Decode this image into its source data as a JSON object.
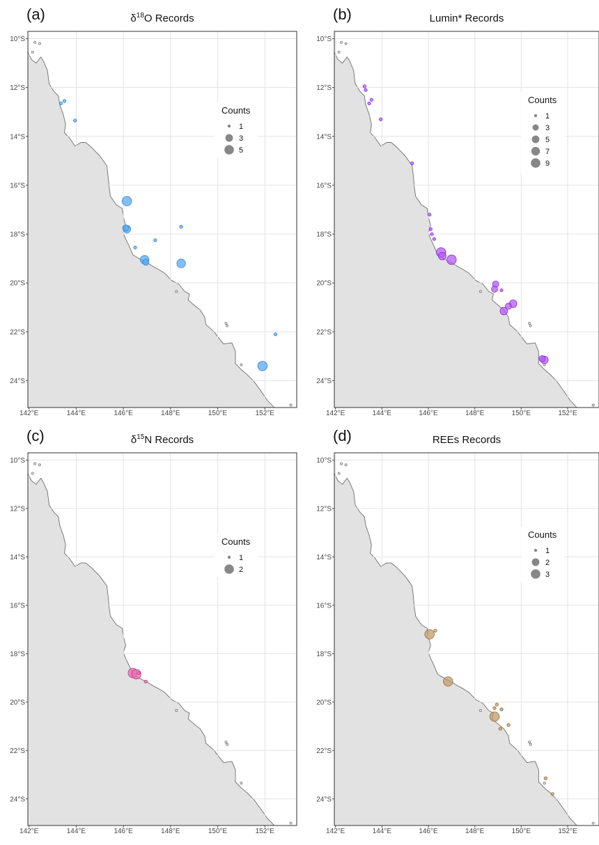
{
  "figure": {
    "panels": [
      {
        "letter": "(a)",
        "title_prefix": "δ",
        "title_sup": "18",
        "title_main": "O Records",
        "point_color": "#5aaaf0",
        "point_stroke": "#2e86d6",
        "legend": {
          "title": "Counts",
          "entries": [
            {
              "label": "1",
              "count": 1
            },
            {
              "label": "3",
              "count": 3
            },
            {
              "label": "5",
              "count": 5
            }
          ]
        },
        "points": [
          {
            "lon": 143.5,
            "lat": -12.55,
            "count": 1
          },
          {
            "lon": 143.35,
            "lat": -12.65,
            "count": 1
          },
          {
            "lon": 143.95,
            "lat": -13.35,
            "count": 1
          },
          {
            "lon": 146.15,
            "lat": -16.65,
            "count": 5
          },
          {
            "lon": 146.15,
            "lat": -17.8,
            "count": 3
          },
          {
            "lon": 146.1,
            "lat": -17.75,
            "count": 2
          },
          {
            "lon": 146.5,
            "lat": -18.55,
            "count": 1
          },
          {
            "lon": 147.35,
            "lat": -18.25,
            "count": 1
          },
          {
            "lon": 148.45,
            "lat": -17.7,
            "count": 1
          },
          {
            "lon": 146.9,
            "lat": -19.05,
            "count": 4
          },
          {
            "lon": 146.95,
            "lat": -19.15,
            "count": 2
          },
          {
            "lon": 148.45,
            "lat": -19.2,
            "count": 4
          },
          {
            "lon": 152.45,
            "lat": -22.1,
            "count": 1
          },
          {
            "lon": 151.9,
            "lat": -23.4,
            "count": 5
          }
        ]
      },
      {
        "letter": "(b)",
        "title_prefix": "",
        "title_sup": "",
        "title_main": "Lumin* Records",
        "point_color": "#b45cf0",
        "point_stroke": "#8a2be2",
        "legend": {
          "title": "Counts",
          "entries": [
            {
              "label": "1",
              "count": 1
            },
            {
              "label": "3",
              "count": 3
            },
            {
              "label": "5",
              "count": 5
            },
            {
              "label": "7",
              "count": 7
            },
            {
              "label": "9",
              "count": 9
            }
          ]
        },
        "points": [
          {
            "lon": 143.25,
            "lat": -11.95,
            "count": 1
          },
          {
            "lon": 143.3,
            "lat": -12.1,
            "count": 1
          },
          {
            "lon": 143.55,
            "lat": -12.5,
            "count": 1
          },
          {
            "lon": 143.45,
            "lat": -12.65,
            "count": 1
          },
          {
            "lon": 143.95,
            "lat": -13.3,
            "count": 1
          },
          {
            "lon": 145.3,
            "lat": -15.1,
            "count": 1
          },
          {
            "lon": 146.05,
            "lat": -17.2,
            "count": 1
          },
          {
            "lon": 146.1,
            "lat": -17.8,
            "count": 1
          },
          {
            "lon": 146.15,
            "lat": -18.0,
            "count": 1
          },
          {
            "lon": 146.25,
            "lat": -18.2,
            "count": 1
          },
          {
            "lon": 146.55,
            "lat": -18.75,
            "count": 9
          },
          {
            "lon": 146.6,
            "lat": -18.9,
            "count": 5
          },
          {
            "lon": 147.0,
            "lat": -19.05,
            "count": 9
          },
          {
            "lon": 148.9,
            "lat": -20.05,
            "count": 3
          },
          {
            "lon": 148.85,
            "lat": -20.25,
            "count": 3
          },
          {
            "lon": 149.15,
            "lat": -20.3,
            "count": 1
          },
          {
            "lon": 149.65,
            "lat": -20.85,
            "count": 5
          },
          {
            "lon": 149.45,
            "lat": -20.95,
            "count": 3
          },
          {
            "lon": 149.25,
            "lat": -21.15,
            "count": 5
          },
          {
            "lon": 151.0,
            "lat": -23.15,
            "count": 5
          },
          {
            "lon": 150.9,
            "lat": -23.1,
            "count": 3
          }
        ]
      },
      {
        "letter": "(c)",
        "title_prefix": "δ",
        "title_sup": "15",
        "title_main": "N Records",
        "point_color": "#e66fb0",
        "point_stroke": "#c53b8a",
        "legend": {
          "title": "Counts",
          "entries": [
            {
              "label": "1",
              "count": 1
            },
            {
              "label": "2",
              "count": 2
            }
          ]
        },
        "points": [
          {
            "lon": 146.4,
            "lat": -18.8,
            "count": 2
          },
          {
            "lon": 146.55,
            "lat": -18.85,
            "count": 2
          },
          {
            "lon": 146.65,
            "lat": -18.8,
            "count": 1
          },
          {
            "lon": 146.95,
            "lat": -19.15,
            "count": 1
          }
        ]
      },
      {
        "letter": "(d)",
        "title_prefix": "",
        "title_sup": "",
        "title_main": "REEs Records",
        "point_color": "#c09a6b",
        "point_stroke": "#9a7040",
        "legend": {
          "title": "Counts",
          "entries": [
            {
              "label": "1",
              "count": 1
            },
            {
              "label": "2",
              "count": 2
            },
            {
              "label": "3",
              "count": 3
            }
          ]
        },
        "points": [
          {
            "lon": 146.05,
            "lat": -17.2,
            "count": 3
          },
          {
            "lon": 146.3,
            "lat": -17.05,
            "count": 1
          },
          {
            "lon": 146.85,
            "lat": -19.15,
            "count": 3
          },
          {
            "lon": 148.95,
            "lat": -20.1,
            "count": 1
          },
          {
            "lon": 148.85,
            "lat": -20.25,
            "count": 1
          },
          {
            "lon": 149.15,
            "lat": -20.3,
            "count": 1
          },
          {
            "lon": 148.85,
            "lat": -20.6,
            "count": 3
          },
          {
            "lon": 149.1,
            "lat": -21.1,
            "count": 1
          },
          {
            "lon": 149.45,
            "lat": -20.95,
            "count": 1
          },
          {
            "lon": 151.05,
            "lat": -23.15,
            "count": 1
          },
          {
            "lon": 151.35,
            "lat": -23.8,
            "count": 1
          }
        ]
      }
    ],
    "axes": {
      "x_ticks": [
        {
          "value": 142,
          "label": "142°E"
        },
        {
          "value": 144,
          "label": "144°E"
        },
        {
          "value": 146,
          "label": "146°E"
        },
        {
          "value": 148,
          "label": "148°E"
        },
        {
          "value": 150,
          "label": "150°E"
        },
        {
          "value": 152,
          "label": "152°E"
        }
      ],
      "y_ticks": [
        {
          "value": -10,
          "label": "10°S"
        },
        {
          "value": -12,
          "label": "12°S"
        },
        {
          "value": -14,
          "label": "14°S"
        },
        {
          "value": -16,
          "label": "16°S"
        },
        {
          "value": -18,
          "label": "18°S"
        },
        {
          "value": -20,
          "label": "20°S"
        },
        {
          "value": -22,
          "label": "22°S"
        },
        {
          "value": -24,
          "label": "24°S"
        }
      ],
      "lon_range": [
        141.95,
        153.35
      ],
      "lat_range": [
        -25.1,
        -9.7
      ],
      "grid": true
    },
    "land_color": "#e2e2e2",
    "coastline_color": "#6e6e6e"
  }
}
